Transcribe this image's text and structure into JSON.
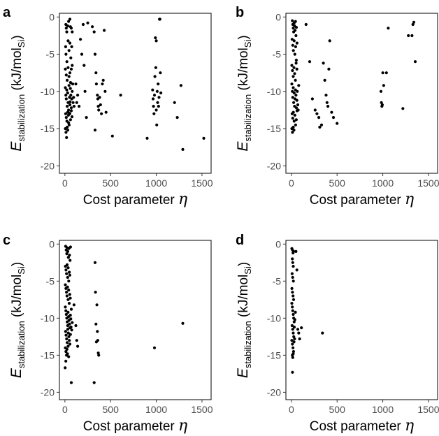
{
  "chart_data": [
    {
      "type": "scatter",
      "panel_label": "a",
      "xlabel": "Cost parameter η",
      "ylabel": "E_stabilization (kJ/mol_Si)",
      "xlim": [
        -60,
        1600
      ],
      "ylim": [
        -21,
        0.5
      ],
      "xticks": [
        0,
        500,
        1000,
        1500
      ],
      "yticks": [
        0,
        -5,
        -10,
        -15,
        -20
      ],
      "grid": false,
      "points": [
        [
          10,
          -1
        ],
        [
          15,
          -1.5
        ],
        [
          20,
          -2
        ],
        [
          30,
          -1.2
        ],
        [
          40,
          -0.6
        ],
        [
          55,
          -0.3
        ],
        [
          60,
          -1.3
        ],
        [
          70,
          -1.5
        ],
        [
          80,
          -2
        ],
        [
          8,
          -4
        ],
        [
          12,
          -5
        ],
        [
          22,
          -6
        ],
        [
          35,
          -3.2
        ],
        [
          45,
          -4.5
        ],
        [
          55,
          -3.5
        ],
        [
          65,
          -5.5
        ],
        [
          75,
          -4
        ],
        [
          5,
          -7
        ],
        [
          15,
          -7.8
        ],
        [
          25,
          -8.5
        ],
        [
          35,
          -6.8
        ],
        [
          45,
          -8
        ],
        [
          55,
          -7.5
        ],
        [
          62,
          -8.8
        ],
        [
          70,
          -7
        ],
        [
          80,
          -6.5
        ],
        [
          5,
          -9.5
        ],
        [
          10,
          -10.5
        ],
        [
          15,
          -11
        ],
        [
          20,
          -9.8
        ],
        [
          25,
          -12
        ],
        [
          30,
          -10.2
        ],
        [
          35,
          -11.5
        ],
        [
          40,
          -12.5
        ],
        [
          45,
          -9.2
        ],
        [
          50,
          -10.8
        ],
        [
          55,
          -11.8
        ],
        [
          60,
          -9.6
        ],
        [
          65,
          -10.5
        ],
        [
          70,
          -12.2
        ],
        [
          75,
          -11
        ],
        [
          80,
          -10
        ],
        [
          85,
          -9
        ],
        [
          90,
          -11.5
        ],
        [
          95,
          -10.8
        ],
        [
          100,
          -12
        ],
        [
          8,
          -13
        ],
        [
          15,
          -13.5
        ],
        [
          22,
          -14
        ],
        [
          30,
          -12.8
        ],
        [
          38,
          -13.2
        ],
        [
          46,
          -14.5
        ],
        [
          54,
          -13
        ],
        [
          62,
          -13.8
        ],
        [
          70,
          -12.6
        ],
        [
          78,
          -13.4
        ],
        [
          5,
          -15
        ],
        [
          12,
          -15.5
        ],
        [
          18,
          -16.2
        ],
        [
          25,
          -14.8
        ],
        [
          32,
          -15.2
        ],
        [
          40,
          -14.2
        ],
        [
          48,
          -12.9
        ],
        [
          56,
          -11.4
        ],
        [
          120,
          -9
        ],
        [
          130,
          -11.5
        ],
        [
          140,
          -10.5
        ],
        [
          155,
          -12
        ],
        [
          170,
          -3
        ],
        [
          185,
          -5
        ],
        [
          200,
          -1
        ],
        [
          210,
          -6.5
        ],
        [
          220,
          -10
        ],
        [
          235,
          -13.5
        ],
        [
          250,
          -0.8
        ],
        [
          300,
          -1.3
        ],
        [
          320,
          -2
        ],
        [
          330,
          -5
        ],
        [
          340,
          -7.5
        ],
        [
          345,
          -9
        ],
        [
          355,
          -10.5
        ],
        [
          360,
          -11
        ],
        [
          365,
          -12
        ],
        [
          370,
          -12.5
        ],
        [
          380,
          -10.8
        ],
        [
          390,
          -11.8
        ],
        [
          400,
          -13
        ],
        [
          410,
          -9
        ],
        [
          420,
          -8.5
        ],
        [
          430,
          -1.8
        ],
        [
          440,
          -10
        ],
        [
          450,
          -12.8
        ],
        [
          330,
          -15.2
        ],
        [
          520,
          -16
        ],
        [
          610,
          -10.5
        ],
        [
          900,
          -16.3
        ],
        [
          960,
          -9.8
        ],
        [
          965,
          -11
        ],
        [
          970,
          -12
        ],
        [
          975,
          -13
        ],
        [
          980,
          -10.5
        ],
        [
          985,
          -8
        ],
        [
          990,
          -2.8
        ],
        [
          995,
          -6.8
        ],
        [
          1000,
          -12.5
        ],
        [
          1005,
          -14.5
        ],
        [
          1010,
          -10
        ],
        [
          1015,
          -11.5
        ],
        [
          1020,
          -9
        ],
        [
          1025,
          -12
        ],
        [
          1030,
          -10.8
        ],
        [
          1035,
          -0.3
        ],
        [
          1040,
          -0.3
        ],
        [
          1045,
          -7.5
        ],
        [
          1050,
          -10.2
        ],
        [
          1000,
          -3.2
        ],
        [
          1200,
          -11.5
        ],
        [
          1230,
          -13.5
        ],
        [
          1270,
          -9.2
        ],
        [
          1290,
          -17.8
        ],
        [
          1520,
          -16.3
        ]
      ]
    },
    {
      "type": "scatter",
      "panel_label": "b",
      "xlabel": "Cost parameter η",
      "ylabel": "E_stabilization (kJ/mol_Si)",
      "xlim": [
        -60,
        1600
      ],
      "ylim": [
        -21,
        0.5
      ],
      "xticks": [
        0,
        500,
        1000,
        1500
      ],
      "yticks": [
        0,
        -5,
        -10,
        -15,
        -20
      ],
      "grid": false,
      "points": [
        [
          10,
          -0.5
        ],
        [
          15,
          -1
        ],
        [
          20,
          -1.5
        ],
        [
          25,
          -2
        ],
        [
          30,
          -0.8
        ],
        [
          35,
          -1.2
        ],
        [
          40,
          -1.8
        ],
        [
          45,
          -0.6
        ],
        [
          50,
          -2.5
        ],
        [
          55,
          -1.4
        ],
        [
          8,
          -3
        ],
        [
          15,
          -3.8
        ],
        [
          22,
          -4.5
        ],
        [
          30,
          -3.2
        ],
        [
          38,
          -5
        ],
        [
          46,
          -4
        ],
        [
          54,
          -5.8
        ],
        [
          62,
          -3.5
        ],
        [
          5,
          -6.5
        ],
        [
          12,
          -7.2
        ],
        [
          20,
          -8
        ],
        [
          28,
          -6.8
        ],
        [
          36,
          -7.6
        ],
        [
          44,
          -8.5
        ],
        [
          52,
          -6.2
        ],
        [
          60,
          -7
        ],
        [
          5,
          -9
        ],
        [
          10,
          -10
        ],
        [
          15,
          -10.8
        ],
        [
          20,
          -9.5
        ],
        [
          25,
          -11.5
        ],
        [
          30,
          -10.2
        ],
        [
          35,
          -12
        ],
        [
          40,
          -11
        ],
        [
          45,
          -9.8
        ],
        [
          50,
          -10.5
        ],
        [
          55,
          -12.2
        ],
        [
          60,
          -11.2
        ],
        [
          65,
          -10
        ],
        [
          70,
          -11.8
        ],
        [
          75,
          -12.5
        ],
        [
          80,
          -9.2
        ],
        [
          8,
          -13
        ],
        [
          15,
          -13.6
        ],
        [
          22,
          -12.8
        ],
        [
          30,
          -14
        ],
        [
          38,
          -13.2
        ],
        [
          46,
          -14.5
        ],
        [
          54,
          -13.8
        ],
        [
          62,
          -12.6
        ],
        [
          5,
          -15
        ],
        [
          12,
          -15.5
        ],
        [
          20,
          -14.8
        ],
        [
          28,
          -15.2
        ],
        [
          160,
          -1
        ],
        [
          200,
          -6
        ],
        [
          230,
          -11
        ],
        [
          260,
          -12.5
        ],
        [
          280,
          -13
        ],
        [
          300,
          -13.5
        ],
        [
          310,
          -14.8
        ],
        [
          330,
          -14.5
        ],
        [
          350,
          -6.2
        ],
        [
          365,
          -8.5
        ],
        [
          380,
          -10.5
        ],
        [
          390,
          -11.5
        ],
        [
          400,
          -12
        ],
        [
          410,
          -7
        ],
        [
          420,
          -3.2
        ],
        [
          440,
          -12.8
        ],
        [
          460,
          -13.5
        ],
        [
          500,
          -14.3
        ],
        [
          980,
          -10
        ],
        [
          985,
          -11.5
        ],
        [
          990,
          -12
        ],
        [
          995,
          -11.8
        ],
        [
          1000,
          -7.5
        ],
        [
          1010,
          -9.2
        ],
        [
          1040,
          -7.5
        ],
        [
          1060,
          -1.5
        ],
        [
          1220,
          -12.3
        ],
        [
          1280,
          -2.5
        ],
        [
          1320,
          -2.5
        ],
        [
          1330,
          -1
        ],
        [
          1340,
          -0.7
        ],
        [
          1355,
          -6
        ]
      ]
    },
    {
      "type": "scatter",
      "panel_label": "c",
      "xlabel": "Cost parameter η",
      "ylabel": "E_stabilization (kJ/mol_Si)",
      "xlim": [
        -60,
        1600
      ],
      "ylim": [
        -21,
        0.5
      ],
      "xticks": [
        0,
        500,
        1000,
        1500
      ],
      "yticks": [
        0,
        -5,
        -10,
        -15,
        -20
      ],
      "grid": false,
      "points": [
        [
          8,
          -0.3
        ],
        [
          14,
          -0.8
        ],
        [
          20,
          -1.3
        ],
        [
          26,
          -0.5
        ],
        [
          32,
          -1
        ],
        [
          38,
          -1.8
        ],
        [
          44,
          -0.6
        ],
        [
          50,
          -1.5
        ],
        [
          56,
          -2.2
        ],
        [
          62,
          -0.4
        ],
        [
          6,
          -3
        ],
        [
          12,
          -3.5
        ],
        [
          18,
          -4
        ],
        [
          24,
          -2.8
        ],
        [
          30,
          -4.5
        ],
        [
          36,
          -3.2
        ],
        [
          42,
          -5
        ],
        [
          48,
          -3.8
        ],
        [
          54,
          -4.2
        ],
        [
          5,
          -5.5
        ],
        [
          11,
          -6
        ],
        [
          17,
          -6.5
        ],
        [
          23,
          -7
        ],
        [
          29,
          -5.8
        ],
        [
          35,
          -7.5
        ],
        [
          41,
          -6.2
        ],
        [
          47,
          -8
        ],
        [
          53,
          -6.8
        ],
        [
          59,
          -7.3
        ],
        [
          5,
          -8.5
        ],
        [
          10,
          -9
        ],
        [
          15,
          -9.5
        ],
        [
          20,
          -10
        ],
        [
          25,
          -10.5
        ],
        [
          30,
          -11
        ],
        [
          35,
          -9.2
        ],
        [
          40,
          -9.8
        ],
        [
          45,
          -10.3
        ],
        [
          50,
          -10.8
        ],
        [
          55,
          -11.3
        ],
        [
          60,
          -9.6
        ],
        [
          65,
          -10.1
        ],
        [
          70,
          -8.8
        ],
        [
          75,
          -11.6
        ],
        [
          80,
          -10.6
        ],
        [
          7,
          -11.8
        ],
        [
          13,
          -12.3
        ],
        [
          19,
          -12.8
        ],
        [
          25,
          -13.3
        ],
        [
          31,
          -11.5
        ],
        [
          37,
          -12
        ],
        [
          43,
          -12.5
        ],
        [
          49,
          -13
        ],
        [
          55,
          -13.5
        ],
        [
          61,
          -12.2
        ],
        [
          67,
          -11.2
        ],
        [
          5,
          -14
        ],
        [
          11,
          -14.5
        ],
        [
          17,
          -15
        ],
        [
          23,
          -14.2
        ],
        [
          29,
          -14.8
        ],
        [
          35,
          -13.8
        ],
        [
          41,
          -15.2
        ],
        [
          3,
          -16.7
        ],
        [
          10,
          -15.8
        ],
        [
          100,
          -8.2
        ],
        [
          120,
          -11
        ],
        [
          130,
          -13
        ],
        [
          140,
          -13.8
        ],
        [
          70,
          -18.7
        ],
        [
          330,
          -2.5
        ],
        [
          335,
          -6.5
        ],
        [
          340,
          -10.8
        ],
        [
          345,
          -13.2
        ],
        [
          350,
          -8.2
        ],
        [
          355,
          -11.8
        ],
        [
          360,
          -13
        ],
        [
          365,
          -14.7
        ],
        [
          370,
          -15
        ],
        [
          320,
          -18.7
        ],
        [
          980,
          -14
        ],
        [
          1290,
          -10.7
        ]
      ]
    },
    {
      "type": "scatter",
      "panel_label": "d",
      "xlabel": "Cost parameter η",
      "ylabel": "E_stabilization (kJ/mol_Si)",
      "xlim": [
        -60,
        1600
      ],
      "ylim": [
        -21,
        0.5
      ],
      "xticks": [
        0,
        500,
        1000,
        1500
      ],
      "yticks": [
        0,
        -5,
        -10,
        -15,
        -20
      ],
      "grid": false,
      "points": [
        [
          5,
          -0.6
        ],
        [
          12,
          -0.8
        ],
        [
          18,
          -1.2
        ],
        [
          25,
          -1
        ],
        [
          10,
          -2
        ],
        [
          15,
          -2.5
        ],
        [
          20,
          -3
        ],
        [
          8,
          -4
        ],
        [
          14,
          -4.5
        ],
        [
          22,
          -5
        ],
        [
          6,
          -6
        ],
        [
          12,
          -6.5
        ],
        [
          18,
          -7
        ],
        [
          24,
          -7.5
        ],
        [
          5,
          -8
        ],
        [
          10,
          -8.5
        ],
        [
          15,
          -9
        ],
        [
          20,
          -9.5
        ],
        [
          25,
          -10
        ],
        [
          30,
          -10.5
        ],
        [
          8,
          -11
        ],
        [
          14,
          -11.5
        ],
        [
          20,
          -12
        ],
        [
          26,
          -12.5
        ],
        [
          32,
          -11.2
        ],
        [
          38,
          -10.2
        ],
        [
          44,
          -9.2
        ],
        [
          5,
          -13
        ],
        [
          11,
          -13.5
        ],
        [
          17,
          -14
        ],
        [
          23,
          -14.5
        ],
        [
          29,
          -13.2
        ],
        [
          35,
          -12.8
        ],
        [
          10,
          -15
        ],
        [
          15,
          -15.3
        ],
        [
          20,
          -14.8
        ],
        [
          12,
          -17.3
        ],
        [
          50,
          -1
        ],
        [
          60,
          -3.5
        ],
        [
          70,
          -11.5
        ],
        [
          80,
          -12
        ],
        [
          90,
          -12.8
        ],
        [
          110,
          -11.3
        ],
        [
          340,
          -12
        ]
      ]
    }
  ],
  "ylabel_parts": {
    "E": "E",
    "E_sub": "stabilization",
    "units_open": "(kJ/mol",
    "units_sub": "Si",
    "units_close": ")"
  },
  "xlabel_parts": {
    "text": "Cost parameter ",
    "symbol": "η"
  }
}
